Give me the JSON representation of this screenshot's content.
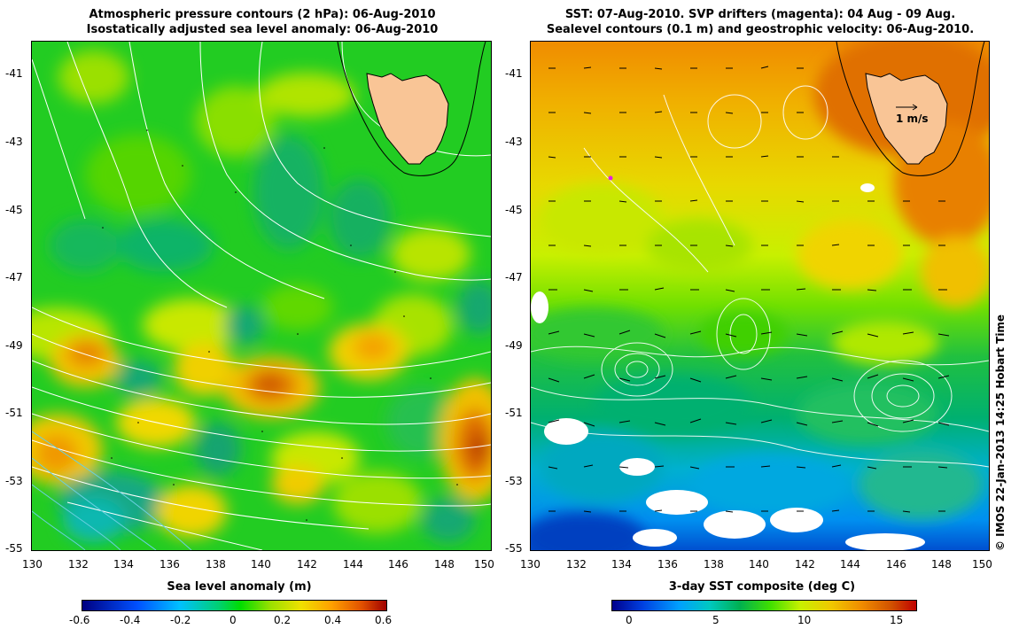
{
  "left_panel": {
    "title_line1": "Atmospheric pressure contours (2 hPa): 06-Aug-2010",
    "title_line2": "Isostatically adjusted sea level anomaly: 06-Aug-2010",
    "colorbar_title": "Sea level anomaly (m)",
    "colorbar_ticks": [
      "-0.6",
      "-0.4",
      "-0.2",
      "0",
      "0.2",
      "0.4",
      "0.6"
    ]
  },
  "right_panel": {
    "title_line1": "SST: 07-Aug-2010. SVP drifters (magenta): 04 Aug - 09 Aug.",
    "title_line2": "Sealevel contours (0.1 m) and geostrophic velocity: 06-Aug-2010.",
    "scale_label": "1 m/s",
    "colorbar_title": "3-day SST composite (deg C)",
    "colorbar_ticks": [
      "0",
      "5",
      "10",
      "15"
    ]
  },
  "axes": {
    "lat_ticks": [
      "-41",
      "-43",
      "-45",
      "-47",
      "-49",
      "-51",
      "-53",
      "-55"
    ],
    "lon_ticks": [
      "130",
      "132",
      "134",
      "136",
      "138",
      "140",
      "142",
      "144",
      "146",
      "148",
      "150"
    ]
  },
  "credit": "© IMOS 22-Jan-2013 14:25 Hobart Time",
  "colors": {
    "land": "#f9c596",
    "contour": "#ffffff",
    "drifter": "#e020e0",
    "sla_colormap": [
      "#000080",
      "#0050ff",
      "#00c0ff",
      "#00d070",
      "#00dd00",
      "#9be000",
      "#f0e000",
      "#ffa000",
      "#e05000",
      "#a00000"
    ],
    "sst_colormap": [
      "#00008c",
      "#0040e0",
      "#00a0ff",
      "#00c8c0",
      "#00b050",
      "#40e000",
      "#c8f000",
      "#f0c800",
      "#f08c00",
      "#d05000",
      "#c00000"
    ]
  }
}
